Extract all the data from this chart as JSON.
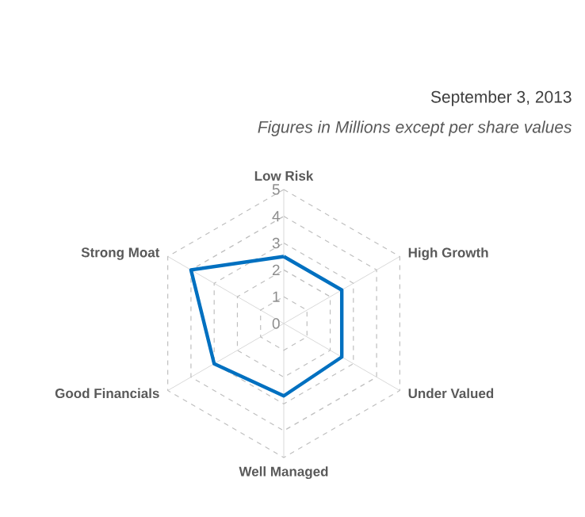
{
  "chart_data": {
    "type": "radar",
    "subtitle": "September 3, 2013",
    "annotations": [
      "Figures in Millions except per share values"
    ],
    "categories": [
      "Low Risk",
      "High Growth",
      "Under Valued",
      "Well Managed",
      "Good Financials",
      "Strong Moat"
    ],
    "series": [
      {
        "color": "#0070c0",
        "values": [
          2.5,
          2.5,
          2.5,
          2.7,
          3,
          4
        ]
      }
    ],
    "ylim": [
      0,
      5
    ],
    "yticks": [
      0,
      1,
      2,
      3,
      4,
      5
    ],
    "grid": true
  }
}
